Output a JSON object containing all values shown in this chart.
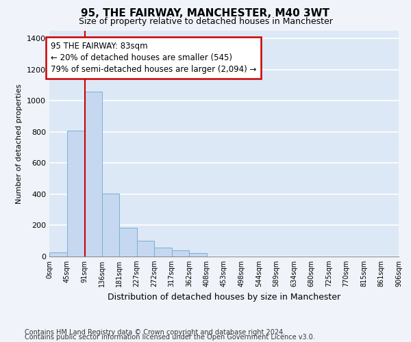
{
  "title": "95, THE FAIRWAY, MANCHESTER, M40 3WT",
  "subtitle": "Size of property relative to detached houses in Manchester",
  "xlabel": "Distribution of detached houses by size in Manchester",
  "ylabel": "Number of detached properties",
  "bin_width": 45,
  "bar_values": [
    25,
    810,
    1060,
    405,
    185,
    100,
    55,
    38,
    22,
    0,
    0,
    0,
    0,
    0,
    0,
    0,
    0,
    0,
    0,
    0
  ],
  "bar_color": "#c5d8f0",
  "bar_edge_color": "#7aafd4",
  "vline_color": "#cc0000",
  "vline_x": 91,
  "annotation_text": "95 THE FAIRWAY: 83sqm\n← 20% of detached houses are smaller (545)\n79% of semi-detached houses are larger (2,094) →",
  "annotation_box_color": "#ffffff",
  "annotation_box_edge": "#cc0000",
  "ylim": [
    0,
    1450
  ],
  "yticks": [
    0,
    200,
    400,
    600,
    800,
    1000,
    1200,
    1400
  ],
  "x_labels": [
    "0sqm",
    "45sqm",
    "91sqm",
    "136sqm",
    "181sqm",
    "227sqm",
    "272sqm",
    "317sqm",
    "362sqm",
    "408sqm",
    "453sqm",
    "498sqm",
    "544sqm",
    "589sqm",
    "634sqm",
    "680sqm",
    "725sqm",
    "770sqm",
    "815sqm",
    "861sqm",
    "906sqm"
  ],
  "footer_line1": "Contains HM Land Registry data © Crown copyright and database right 2024.",
  "footer_line2": "Contains public sector information licensed under the Open Government Licence v3.0.",
  "background_color": "#f0f4fa",
  "plot_background": "#dce8f5",
  "grid_color": "#ffffff",
  "title_fontsize": 11,
  "subtitle_fontsize": 9,
  "ylabel_fontsize": 8,
  "xlabel_fontsize": 9,
  "footer_fontsize": 7,
  "tick_fontsize": 8,
  "annot_fontsize": 8.5
}
